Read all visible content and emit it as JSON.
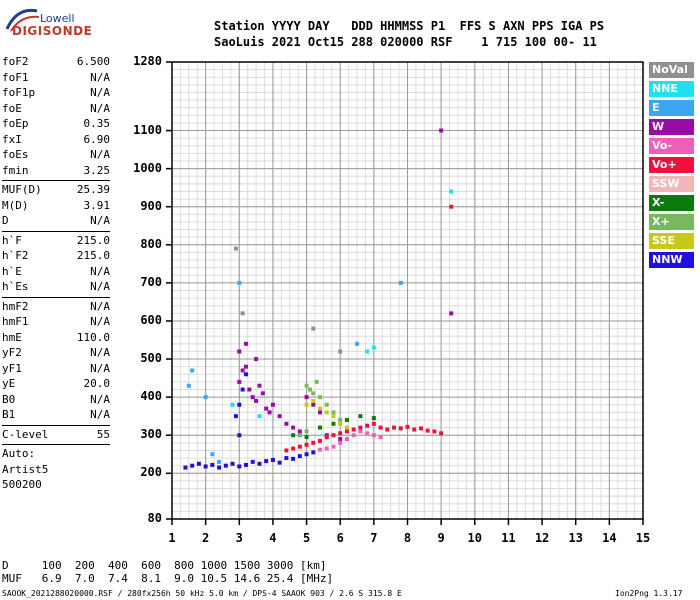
{
  "logo": {
    "top": "Lowell",
    "bottom": "DIGISONDE"
  },
  "header": {
    "line1": "Station YYYY DAY   DDD HHMMSS P1  FFS S AXN PPS IGA PS",
    "line2": "SaoLuis 2021 Oct15 288 020000 RSF    1 715 100 00- 11"
  },
  "parameters": [
    {
      "label": "foF2",
      "value": "6.500"
    },
    {
      "label": "foF1",
      "value": "N/A"
    },
    {
      "label": "foF1p",
      "value": "N/A"
    },
    {
      "label": "foE",
      "value": "N/A"
    },
    {
      "label": "foEp",
      "value": "0.35"
    },
    {
      "label": "fxI",
      "value": "6.90"
    },
    {
      "label": "foEs",
      "value": "N/A"
    },
    {
      "label": "fmin",
      "value": "3.25"
    },
    {
      "label": "MUF(D)",
      "value": "25.39",
      "sep_before": true
    },
    {
      "label": "M(D)",
      "value": "3.91"
    },
    {
      "label": "D",
      "value": "N/A"
    },
    {
      "label": "h`F",
      "value": "215.0",
      "sep_before": true
    },
    {
      "label": "h`F2",
      "value": "215.0"
    },
    {
      "label": "h`E",
      "value": "N/A"
    },
    {
      "label": "h`Es",
      "value": "N/A"
    },
    {
      "label": "hmF2",
      "value": "N/A",
      "sep_before": true
    },
    {
      "label": "hmF1",
      "value": "N/A"
    },
    {
      "label": "hmE",
      "value": "110.0"
    },
    {
      "label": "yF2",
      "value": "N/A"
    },
    {
      "label": "yF1",
      "value": "N/A"
    },
    {
      "label": "yE",
      "value": "20.0"
    },
    {
      "label": "B0",
      "value": "N/A"
    },
    {
      "label": "B1",
      "value": "N/A"
    },
    {
      "label": "C-level",
      "value": "55",
      "sep_before": true
    }
  ],
  "extra": {
    "auto": "Auto:",
    "artist": "Artist5",
    "version": "500200"
  },
  "legend": [
    {
      "label": "NoVal",
      "color": "#909090"
    },
    {
      "label": "NNE",
      "color": "#1ee0f0"
    },
    {
      "label": "E",
      "color": "#39a8f0"
    },
    {
      "label": "W",
      "color": "#9a0aa6"
    },
    {
      "label": "Vo-",
      "color": "#f060b8"
    },
    {
      "label": "Vo+",
      "color": "#f0103c"
    },
    {
      "label": "SSW",
      "color": "#f0b8b8"
    },
    {
      "label": "X-",
      "color": "#0a7a0a"
    },
    {
      "label": "X+",
      "color": "#78b860"
    },
    {
      "label": "SSE",
      "color": "#c8c818"
    },
    {
      "label": "NNW",
      "color": "#2010e0"
    }
  ],
  "bottom_table": {
    "d_row": "D     100  200  400  600  800 1000 1500 3000 [km]",
    "muf_row": "MUF   6.9  7.0  7.4  8.1  9.0 10.5 14.6 25.4 [MHz]"
  },
  "footer": {
    "left": "SAOOK_2021288020000.RSF / 280fx256h 50 kHz 5.0 km / DPS-4 SAAOK 903 / 2.6 S 315.8 E",
    "right": "Ion2Png 1.3.17"
  },
  "chart_data": {
    "type": "scatter",
    "title": "",
    "xlabel": "",
    "ylabel": "",
    "x_ticks": [
      1,
      2,
      3,
      4,
      5,
      6,
      7,
      8,
      9,
      10,
      11,
      12,
      13,
      14,
      15
    ],
    "y_ticks": [
      80,
      200,
      300,
      400,
      500,
      600,
      700,
      800,
      900,
      1000,
      1100,
      1280
    ],
    "xlim": [
      1,
      15
    ],
    "ylim": [
      80,
      1280
    ],
    "grid": true,
    "legend_placement": "right",
    "series": [
      {
        "name": "NNW",
        "points": [
          [
            1.4,
            215
          ],
          [
            1.6,
            220
          ],
          [
            1.8,
            225
          ],
          [
            2.0,
            218
          ],
          [
            2.2,
            222
          ],
          [
            2.4,
            215
          ],
          [
            2.6,
            220
          ],
          [
            2.8,
            225
          ],
          [
            3.0,
            218
          ],
          [
            3.2,
            222
          ],
          [
            3.4,
            230
          ],
          [
            3.6,
            225
          ],
          [
            3.8,
            232
          ],
          [
            4.0,
            235
          ],
          [
            4.2,
            228
          ],
          [
            4.4,
            240
          ],
          [
            4.6,
            238
          ],
          [
            4.8,
            245
          ],
          [
            5.0,
            250
          ],
          [
            5.2,
            255
          ],
          [
            3.0,
            380
          ],
          [
            3.1,
            420
          ],
          [
            3.2,
            460
          ],
          [
            2.9,
            350
          ],
          [
            3.0,
            300
          ]
        ]
      },
      {
        "name": "W",
        "points": [
          [
            3.0,
            440
          ],
          [
            3.1,
            470
          ],
          [
            3.2,
            480
          ],
          [
            3.3,
            420
          ],
          [
            3.4,
            400
          ],
          [
            3.5,
            390
          ],
          [
            3.6,
            430
          ],
          [
            3.7,
            410
          ],
          [
            3.8,
            370
          ],
          [
            3.9,
            360
          ],
          [
            4.0,
            380
          ],
          [
            4.2,
            350
          ],
          [
            4.4,
            330
          ],
          [
            4.6,
            320
          ],
          [
            4.8,
            310
          ],
          [
            5.0,
            400
          ],
          [
            5.2,
            380
          ],
          [
            5.4,
            360
          ],
          [
            5.6,
            300
          ],
          [
            6.0,
            290
          ],
          [
            3.0,
            520
          ],
          [
            3.2,
            540
          ],
          [
            3.5,
            500
          ],
          [
            9.0,
            1100
          ],
          [
            9.3,
            620
          ]
        ]
      },
      {
        "name": "Vo+",
        "points": [
          [
            4.4,
            260
          ],
          [
            4.6,
            265
          ],
          [
            4.8,
            270
          ],
          [
            5.0,
            275
          ],
          [
            5.2,
            280
          ],
          [
            5.4,
            285
          ],
          [
            5.6,
            295
          ],
          [
            5.8,
            300
          ],
          [
            6.0,
            305
          ],
          [
            6.2,
            310
          ],
          [
            6.4,
            315
          ],
          [
            6.6,
            320
          ],
          [
            6.8,
            325
          ],
          [
            7.0,
            330
          ],
          [
            7.2,
            320
          ],
          [
            7.4,
            315
          ],
          [
            7.6,
            320
          ],
          [
            7.8,
            318
          ],
          [
            8.0,
            322
          ],
          [
            8.2,
            315
          ],
          [
            8.4,
            318
          ],
          [
            8.6,
            312
          ],
          [
            8.8,
            310
          ],
          [
            9.0,
            305
          ],
          [
            9.3,
            900
          ]
        ]
      },
      {
        "name": "Vo-",
        "points": [
          [
            6.0,
            280
          ],
          [
            6.2,
            290
          ],
          [
            6.4,
            300
          ],
          [
            6.6,
            310
          ],
          [
            6.8,
            305
          ],
          [
            7.0,
            300
          ],
          [
            7.2,
            295
          ],
          [
            5.8,
            270
          ],
          [
            5.6,
            265
          ],
          [
            5.4,
            262
          ]
        ]
      },
      {
        "name": "X+",
        "points": [
          [
            5.0,
            430
          ],
          [
            5.1,
            420
          ],
          [
            5.2,
            410
          ],
          [
            5.3,
            440
          ],
          [
            5.4,
            400
          ],
          [
            5.6,
            380
          ],
          [
            5.8,
            360
          ],
          [
            6.0,
            340
          ],
          [
            4.8,
            300
          ],
          [
            5.0,
            310
          ]
        ]
      },
      {
        "name": "SSE",
        "points": [
          [
            5.0,
            380
          ],
          [
            5.2,
            390
          ],
          [
            5.4,
            370
          ],
          [
            5.6,
            360
          ],
          [
            5.8,
            350
          ],
          [
            6.0,
            330
          ],
          [
            6.2,
            320
          ]
        ]
      },
      {
        "name": "X-",
        "points": [
          [
            5.4,
            320
          ],
          [
            5.8,
            330
          ],
          [
            6.2,
            340
          ],
          [
            6.6,
            350
          ],
          [
            7.0,
            345
          ],
          [
            4.6,
            300
          ],
          [
            5.0,
            295
          ]
        ]
      },
      {
        "name": "E",
        "points": [
          [
            1.5,
            430
          ],
          [
            1.6,
            470
          ],
          [
            2.0,
            400
          ],
          [
            3.0,
            700
          ],
          [
            6.5,
            540
          ],
          [
            7.8,
            700
          ],
          [
            2.2,
            250
          ],
          [
            2.4,
            230
          ]
        ]
      },
      {
        "name": "NNE",
        "points": [
          [
            2.8,
            380
          ],
          [
            3.6,
            350
          ],
          [
            6.8,
            520
          ],
          [
            7.0,
            530
          ],
          [
            9.3,
            940
          ]
        ]
      },
      {
        "name": "NoVal",
        "points": [
          [
            2.9,
            790
          ],
          [
            3.1,
            620
          ],
          [
            5.2,
            580
          ],
          [
            6.0,
            520
          ]
        ]
      }
    ]
  }
}
